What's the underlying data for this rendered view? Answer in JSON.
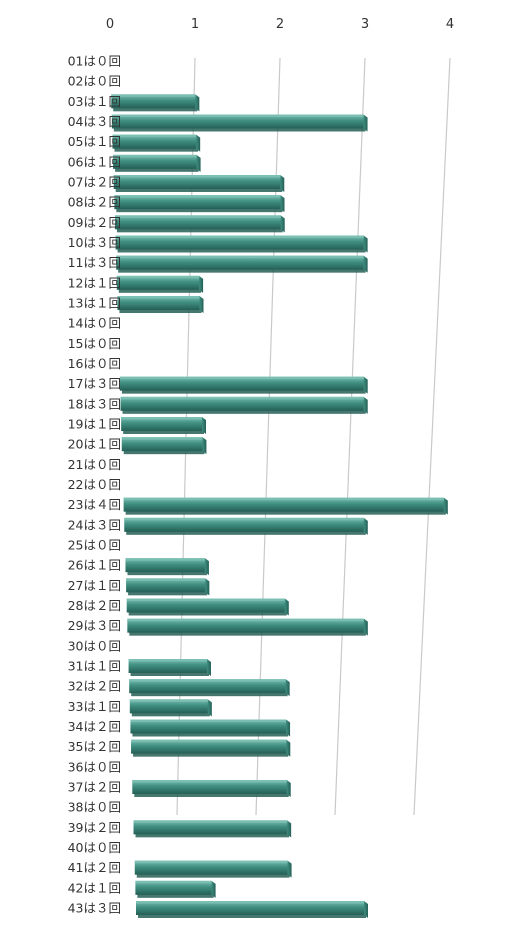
{
  "chart_data": {
    "type": "bar",
    "orientation": "horizontal",
    "style": "3d",
    "title": "",
    "xlabel": "",
    "ylabel": "",
    "xlim": [
      0,
      4
    ],
    "x_ticks": [
      "0",
      "1",
      "2",
      "3",
      "4"
    ],
    "grid": true,
    "legend": "none",
    "colors": {
      "bar_top": "#7cc0b4",
      "bar_front": "#3f8e80",
      "bar_shadow": "#245f56",
      "grid": "#c9c9c9"
    },
    "categories": [
      "01は０回",
      "02は０回",
      "03は１回",
      "04は３回",
      "05は１回",
      "06は１回",
      "07は２回",
      "08は２回",
      "09は２回",
      "10は３回",
      "11は３回",
      "12は１回",
      "13は１回",
      "14は０回",
      "15は０回",
      "16は０回",
      "17は３回",
      "18は３回",
      "19は１回",
      "20は１回",
      "21は０回",
      "22は０回",
      "23は４回",
      "24は３回",
      "25は０回",
      "26は１回",
      "27は１回",
      "28は２回",
      "29は３回",
      "30は０回",
      "31は１回",
      "32は２回",
      "33は１回",
      "34は２回",
      "35は２回",
      "36は０回",
      "37は２回",
      "38は０回",
      "39は２回",
      "40は０回",
      "41は２回",
      "42は１回",
      "43は３回"
    ],
    "values": [
      0,
      0,
      1,
      3,
      1,
      1,
      2,
      2,
      2,
      3,
      3,
      1,
      1,
      0,
      0,
      0,
      3,
      3,
      1,
      1,
      0,
      0,
      4,
      3,
      0,
      1,
      1,
      2,
      3,
      0,
      1,
      2,
      1,
      2,
      2,
      0,
      2,
      0,
      2,
      0,
      2,
      1,
      3
    ]
  }
}
